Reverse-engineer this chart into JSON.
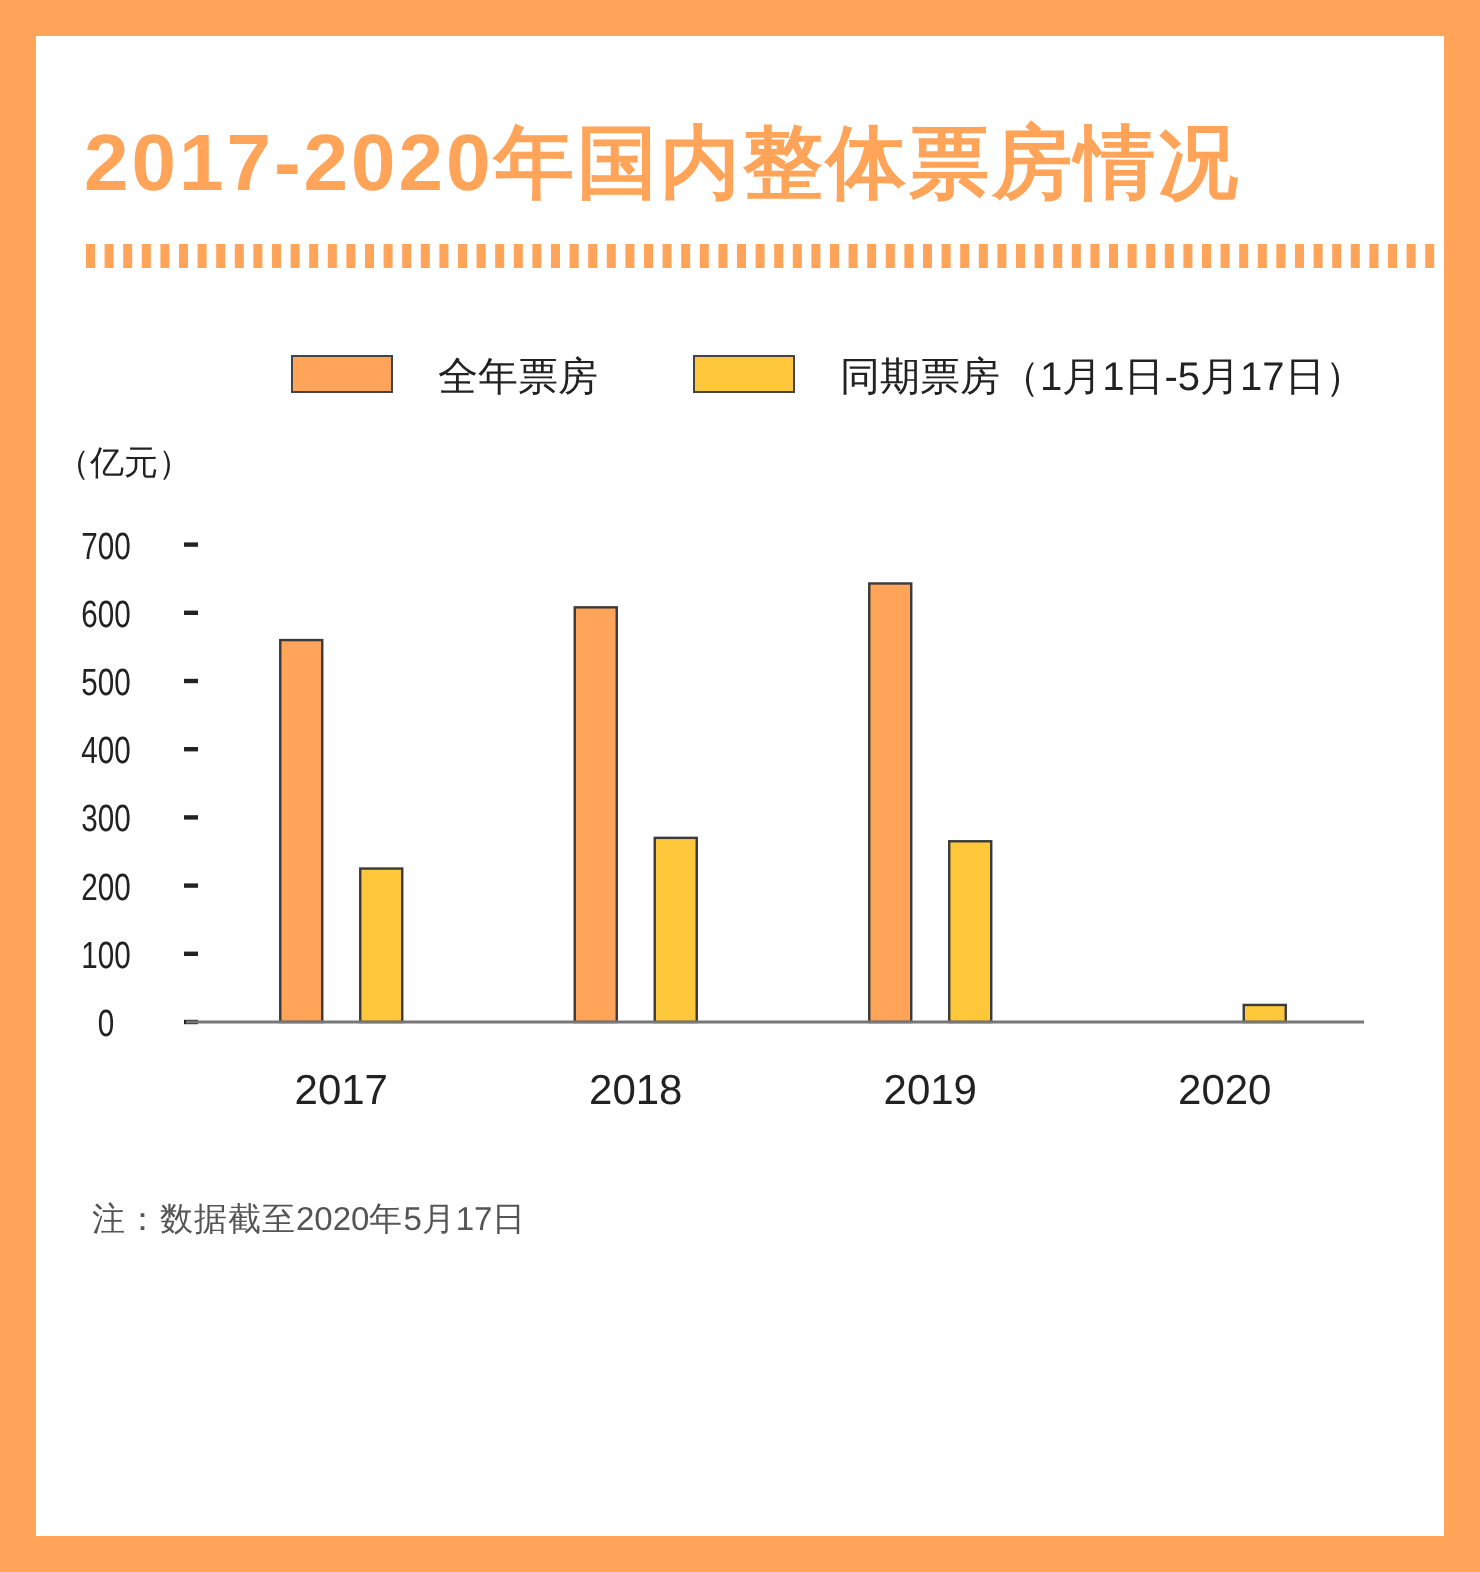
{
  "chart_data": {
    "type": "bar",
    "title": "2017-2020年国内整体票房情况",
    "ylabel": "（亿元）",
    "categories": [
      "2017",
      "2018",
      "2019",
      "2020"
    ],
    "series": [
      {
        "name": "全年票房",
        "color": "#ffa459",
        "values": [
          560,
          608,
          643,
          null
        ]
      },
      {
        "name": "同期票房（1月1日-5月17日）",
        "color": "#ffc83a",
        "values": [
          225,
          270,
          265,
          25
        ]
      }
    ],
    "ylim": [
      0,
      700
    ],
    "yticks": [
      0,
      100,
      200,
      300,
      400,
      500,
      600,
      700
    ],
    "legend": "top",
    "annotations": [
      "注：数据截至2020年5月17日"
    ]
  }
}
